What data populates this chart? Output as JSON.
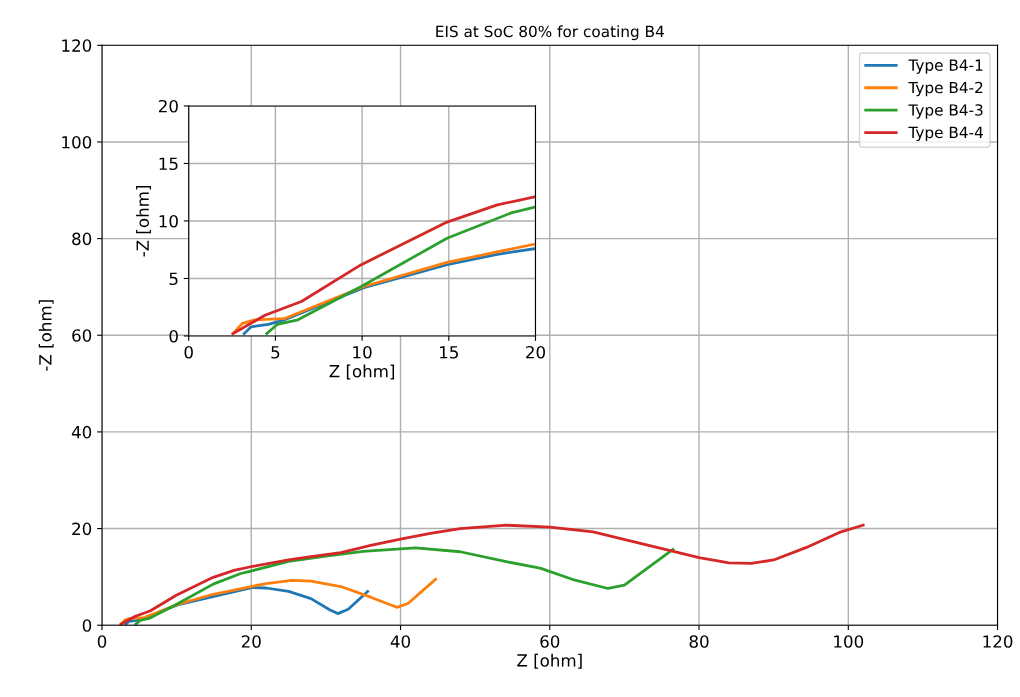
{
  "chart_data": [
    {
      "type": "line",
      "title": "EIS at SoC 80% for coating B4",
      "xlabel": "Z [ohm]",
      "ylabel": "-Z [ohm]",
      "xlim": [
        0,
        120
      ],
      "ylim": [
        0,
        120
      ],
      "xticks": [
        0,
        20,
        40,
        60,
        80,
        100,
        120
      ],
      "yticks": [
        0,
        20,
        40,
        60,
        80,
        100,
        120
      ],
      "grid": true,
      "legend": "top right",
      "series": [
        {
          "name": "Type B4-1",
          "color": "#1f77b4",
          "x": [
            3.2,
            3.6,
            4.6,
            5.5,
            10.1,
            20.2,
            22,
            25,
            28,
            30.5,
            31.6,
            33,
            35.6
          ],
          "values": [
            0.2,
            0.8,
            1.0,
            1.4,
            4.2,
            7.8,
            7.7,
            7.0,
            5.5,
            3.2,
            2.4,
            3.3,
            7.0
          ]
        },
        {
          "name": "Type B4-2",
          "color": "#ff7f0e",
          "x": [
            2.55,
            3.1,
            3.8,
            5.5,
            10.1,
            14.9,
            20,
            22,
            25.4,
            28,
            32,
            36,
            39.5,
            41,
            44.7
          ],
          "values": [
            0.2,
            1.1,
            1.4,
            1.5,
            4.3,
            6.4,
            8.0,
            8.6,
            9.3,
            9.1,
            8.0,
            5.8,
            3.7,
            4.5,
            9.5
          ]
        },
        {
          "name": "Type B4-3",
          "color": "#2ca02c",
          "x": [
            4.5,
            5.1,
            6.3,
            9.95,
            14.9,
            18.6,
            19.95,
            25,
            30,
            35,
            42,
            48,
            54,
            58.7,
            63,
            67.8,
            70,
            73,
            76.5
          ],
          "values": [
            0.2,
            1.0,
            1.4,
            4.3,
            8.5,
            10.7,
            11.2,
            13.2,
            14.3,
            15.3,
            16,
            15.2,
            13.2,
            11.8,
            9.5,
            7.6,
            8.3,
            11.7,
            15.7
          ]
        },
        {
          "name": "Type B4-4",
          "color": "#d62728",
          "x": [
            2.55,
            4.4,
            6.5,
            9.95,
            14.9,
            17.8,
            19.95,
            25,
            28,
            32,
            36,
            40,
            44,
            48,
            54.2,
            60,
            65.8,
            72,
            80,
            84,
            87,
            90,
            94.4,
            98.8,
            102
          ],
          "values": [
            0.2,
            1.8,
            3.0,
            6.2,
            9.9,
            11.4,
            12.1,
            13.5,
            14.2,
            15.0,
            16.5,
            17.8,
            19.0,
            20.0,
            20.7,
            20.3,
            19.3,
            17,
            14,
            12.9,
            12.8,
            13.5,
            16.1,
            19.2,
            20.7
          ]
        }
      ]
    },
    {
      "type": "line",
      "xlabel": "Z [ohm]",
      "ylabel": "-Z [ohm]",
      "xlim": [
        0,
        20
      ],
      "ylim": [
        0,
        20
      ],
      "xticks": [
        0,
        5,
        10,
        15,
        20
      ],
      "yticks": [
        0,
        5,
        10,
        15,
        20
      ],
      "grid": true,
      "series": [
        {
          "color": "#1f77b4",
          "x": [
            3.2,
            3.6,
            4.6,
            5.5,
            10.1,
            14.9,
            17.8,
            20
          ],
          "values": [
            0.2,
            0.8,
            1.0,
            1.4,
            4.2,
            6.2,
            7.1,
            7.6
          ]
        },
        {
          "color": "#ff7f0e",
          "x": [
            2.55,
            3.1,
            3.8,
            5.5,
            10.1,
            14.9,
            20
          ],
          "values": [
            0.2,
            1.1,
            1.4,
            1.5,
            4.3,
            6.4,
            8.0
          ]
        },
        {
          "color": "#2ca02c",
          "x": [
            4.5,
            5.1,
            6.3,
            9.95,
            14.9,
            18.6,
            19.95
          ],
          "values": [
            0.2,
            1.0,
            1.4,
            4.3,
            8.5,
            10.7,
            11.2
          ]
        },
        {
          "color": "#d62728",
          "x": [
            2.55,
            4.4,
            6.5,
            9.95,
            14.9,
            17.8,
            19.95
          ],
          "values": [
            0.2,
            1.8,
            3.0,
            6.2,
            9.9,
            11.4,
            12.1
          ]
        }
      ]
    }
  ]
}
